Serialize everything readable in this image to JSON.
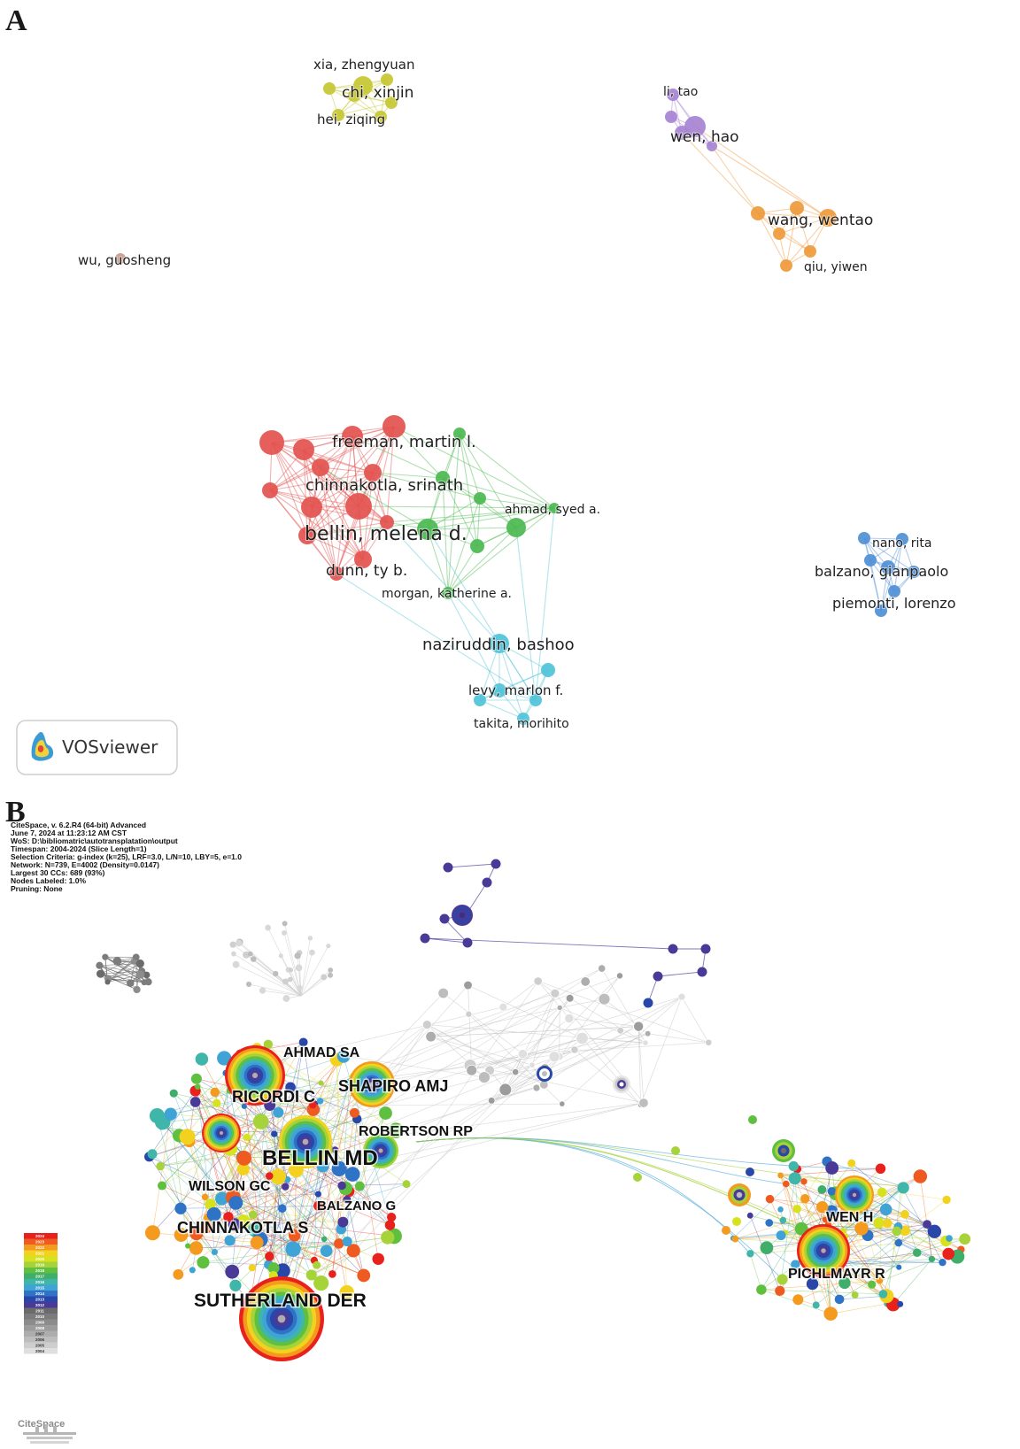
{
  "panel_a": {
    "letter": "A",
    "software_badge": "VOSviewer",
    "clusters": [
      {
        "id": "yellow",
        "color": "#c7c732",
        "labels": [
          "xia, zhengyuan",
          "chi, xinjin",
          "hei, ziqing"
        ]
      },
      {
        "id": "purple",
        "color": "#a783d4",
        "labels": [
          "li, tao",
          "wen, hao"
        ]
      },
      {
        "id": "orange",
        "color": "#ee9a3b",
        "labels": [
          "wang, wentao",
          "qiu, yiwen"
        ]
      },
      {
        "id": "brown",
        "color": "#c79b8c",
        "labels": [
          "wu, guosheng"
        ]
      },
      {
        "id": "red",
        "color": "#e3524f",
        "labels": [
          "freeman, martin l.",
          "chinnakotla, srinath",
          "bellin, melena d.",
          "dunn, ty b."
        ]
      },
      {
        "id": "green",
        "color": "#4bb84f",
        "labels": [
          "ahmad, syed a.",
          "morgan, katherine a."
        ]
      },
      {
        "id": "cyan",
        "color": "#4fc3d8",
        "labels": [
          "naziruddin, bashoo",
          "levy, marlon f.",
          "takita, morihito"
        ]
      },
      {
        "id": "blue",
        "color": "#4f8fd6",
        "labels": [
          "nano, rita",
          "balzano, gianpaolo",
          "piemonti, lorenzo"
        ]
      }
    ]
  },
  "panel_b": {
    "letter": "B",
    "header_lines": [
      "CiteSpace, v. 6.2.R4 (64-bit) Advanced",
      "June 7, 2024 at 11:23:12 AM CST",
      "WoS: D:\\bibliomatric\\autotransplatation\\output",
      "Timespan: 2004-2024 (Slice Length=1)",
      "Selection Criteria: g-index (k=25), LRF=3.0, L/N=10, LBY=5, e=1.0",
      "Network: N=739, E=4002 (Density=0.0147)",
      "Largest 30 CCs: 689 (93%)",
      "Nodes Labeled: 1.0%",
      "Pruning: None"
    ],
    "node_labels": [
      "AHMAD SA",
      "RICORDI C",
      "SHAPIRO AMJ",
      "ROBERTSON RP",
      "BELLIN MD",
      "WILSON GC",
      "BALZANO G",
      "CHINNAKOTLA S",
      "SUTHERLAND DER",
      "WEN H",
      "PICHLMAYR R"
    ],
    "legend_years": [
      "2024",
      "2023",
      "2022",
      "2021",
      "2020",
      "2019",
      "2018",
      "2017",
      "2016",
      "2015",
      "2014",
      "2013",
      "2012",
      "2011",
      "2010",
      "2009",
      "2008",
      "2007",
      "2006",
      "2005",
      "2004"
    ],
    "legend_colors": [
      "#e8211c",
      "#ee5a1f",
      "#f39a1f",
      "#f3d21f",
      "#d7e21f",
      "#a6d23a",
      "#5fbf3f",
      "#3fae6a",
      "#3fb6a9",
      "#3fa3d6",
      "#2f73c6",
      "#2947a8",
      "#4a3a98",
      "#6b6b6b",
      "#7c7c7c",
      "#8c8c8c",
      "#9c9c9c",
      "#adadad",
      "#bdbdbd",
      "#cecece",
      "#dfdfdf"
    ],
    "logo_text": "CiteSpace"
  }
}
